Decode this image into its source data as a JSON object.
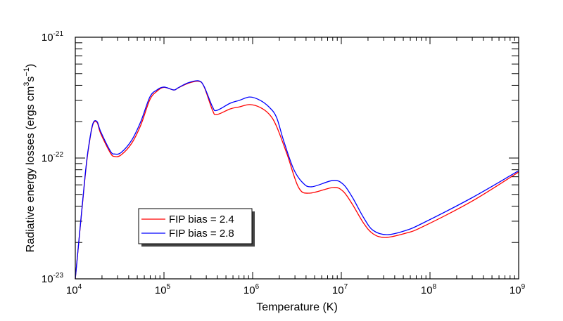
{
  "chart_data": {
    "type": "line",
    "xlabel": "Temperature (K)",
    "ylabel": "Radiative energy losses (ergs cm^3 s^-1)",
    "xscale": "log",
    "yscale": "log",
    "xlim": [
      10000.0,
      1000000000.0
    ],
    "ylim": [
      1e-23,
      1e-21
    ],
    "x_ticks": [
      {
        "base": "10",
        "exp": "4"
      },
      {
        "base": "10",
        "exp": "5"
      },
      {
        "base": "10",
        "exp": "6"
      },
      {
        "base": "10",
        "exp": "7"
      },
      {
        "base": "10",
        "exp": "8"
      },
      {
        "base": "10",
        "exp": "9"
      }
    ],
    "y_ticks": [
      {
        "base": "10",
        "exp": "-23"
      },
      {
        "base": "10",
        "exp": "-22"
      },
      {
        "base": "10",
        "exp": "-21"
      }
    ],
    "grid": false,
    "legend_position": "bottom-left",
    "series": [
      {
        "name": "FIP bias = 2.4",
        "color": "#ff0000",
        "x": [
          10000.0,
          12900.0,
          14200.0,
          15800.0,
          17600.0,
          19300.0,
          24900.0,
          27800.0,
          32800.0,
          43100.0,
          54700.0,
          69300.0,
          83300.0,
          100000.0,
          129000.0,
          144000.0,
          186000.0,
          245000.0,
          283000.0,
          353000.0,
          394000.0,
          557000.0,
          706000.0,
          929000.0,
          1220000.0,
          1550000.0,
          1860000.0,
          2450000.0,
          3300000.0,
          4400000.0,
          8030000.0,
          10400000.0,
          13200000.0,
          17900000.0,
          22800000.0,
          31500000.0,
          53700000.0,
          81900000.0,
          294000000.0,
          1000000000.0
        ],
        "y": [
          1e-23,
          7e-23,
          1.25e-22,
          1.9e-22,
          1.97e-22,
          1.6e-22,
          1.1e-22,
          1.03e-22,
          1.06e-22,
          1.32e-22,
          1.87e-22,
          3.04e-22,
          3.57e-22,
          3.85e-22,
          3.66e-22,
          3.8e-22,
          4.15e-22,
          4.32e-22,
          3.9e-22,
          2.48e-22,
          2.29e-22,
          2.55e-22,
          2.65e-22,
          2.77e-22,
          2.62e-22,
          2.29e-22,
          1.83e-22,
          1.07e-22,
          5.7e-23,
          5.12e-23,
          5.7e-23,
          5.33e-23,
          4.19e-23,
          2.88e-23,
          2.36e-23,
          2.2e-23,
          2.39e-23,
          2.69e-23,
          4.37e-23,
          7.66e-23
        ]
      },
      {
        "name": "FIP bias = 2.8",
        "color": "#0000ff",
        "x": [
          10000.0,
          12900.0,
          14200.0,
          15800.0,
          17600.0,
          19300.0,
          24900.0,
          27800.0,
          32800.0,
          43100.0,
          54700.0,
          69300.0,
          83300.0,
          100000.0,
          129000.0,
          144000.0,
          186000.0,
          245000.0,
          283000.0,
          353000.0,
          394000.0,
          557000.0,
          706000.0,
          929000.0,
          1220000.0,
          1550000.0,
          1860000.0,
          2230000.0,
          2880000.0,
          3660000.0,
          4640000.0,
          8030000.0,
          10400000.0,
          13200000.0,
          17900000.0,
          22800000.0,
          32800000.0,
          53700000.0,
          81900000.0,
          294000000.0,
          1000000000.0
        ],
        "y": [
          1e-23,
          7.16e-23,
          1.27e-22,
          1.93e-22,
          2e-22,
          1.66e-22,
          1.14e-22,
          1.08e-22,
          1.11e-22,
          1.4e-22,
          2e-22,
          3.2e-22,
          3.66e-22,
          3.87e-22,
          3.66e-22,
          3.81e-22,
          4.19e-22,
          4.36e-22,
          3.92e-22,
          2.65e-22,
          2.48e-22,
          2.84e-22,
          3e-22,
          3.2e-22,
          3e-22,
          2.62e-22,
          2.17e-22,
          1.4e-22,
          8.18e-23,
          6.26e-23,
          5.78e-23,
          6.52e-23,
          6.1e-23,
          4.79e-23,
          3.2e-23,
          2.52e-23,
          2.32e-23,
          2.52e-23,
          2.88e-23,
          4.67e-23,
          7.85e-23
        ]
      }
    ]
  }
}
